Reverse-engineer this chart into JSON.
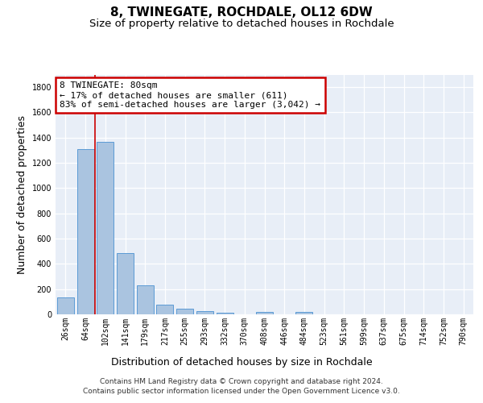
{
  "title": "8, TWINEGATE, ROCHDALE, OL12 6DW",
  "subtitle": "Size of property relative to detached houses in Rochdale",
  "xlabel": "Distribution of detached houses by size in Rochdale",
  "ylabel": "Number of detached properties",
  "categories": [
    "26sqm",
    "64sqm",
    "102sqm",
    "141sqm",
    "179sqm",
    "217sqm",
    "255sqm",
    "293sqm",
    "332sqm",
    "370sqm",
    "408sqm",
    "446sqm",
    "484sqm",
    "523sqm",
    "561sqm",
    "599sqm",
    "637sqm",
    "675sqm",
    "714sqm",
    "752sqm",
    "790sqm"
  ],
  "values": [
    137,
    1310,
    1365,
    487,
    228,
    78,
    45,
    28,
    15,
    0,
    22,
    0,
    20,
    0,
    0,
    0,
    0,
    0,
    0,
    0,
    0
  ],
  "bar_color": "#aac4e0",
  "bar_edge_color": "#5b9bd5",
  "annotation_line1": "8 TWINEGATE: 80sqm",
  "annotation_line2": "← 17% of detached houses are smaller (611)",
  "annotation_line3": "83% of semi-detached houses are larger (3,042) →",
  "annotation_box_color": "#ffffff",
  "annotation_box_edge_color": "#cc0000",
  "vline_x": 1.5,
  "vline_color": "#cc0000",
  "ylim": [
    0,
    1900
  ],
  "yticks": [
    0,
    200,
    400,
    600,
    800,
    1000,
    1200,
    1400,
    1600,
    1800
  ],
  "bg_color": "#e8eef7",
  "footer_line1": "Contains HM Land Registry data © Crown copyright and database right 2024.",
  "footer_line2": "Contains public sector information licensed under the Open Government Licence v3.0.",
  "title_fontsize": 11,
  "subtitle_fontsize": 9.5,
  "axis_label_fontsize": 9,
  "tick_fontsize": 7,
  "footer_fontsize": 6.5,
  "annotation_fontsize": 8
}
